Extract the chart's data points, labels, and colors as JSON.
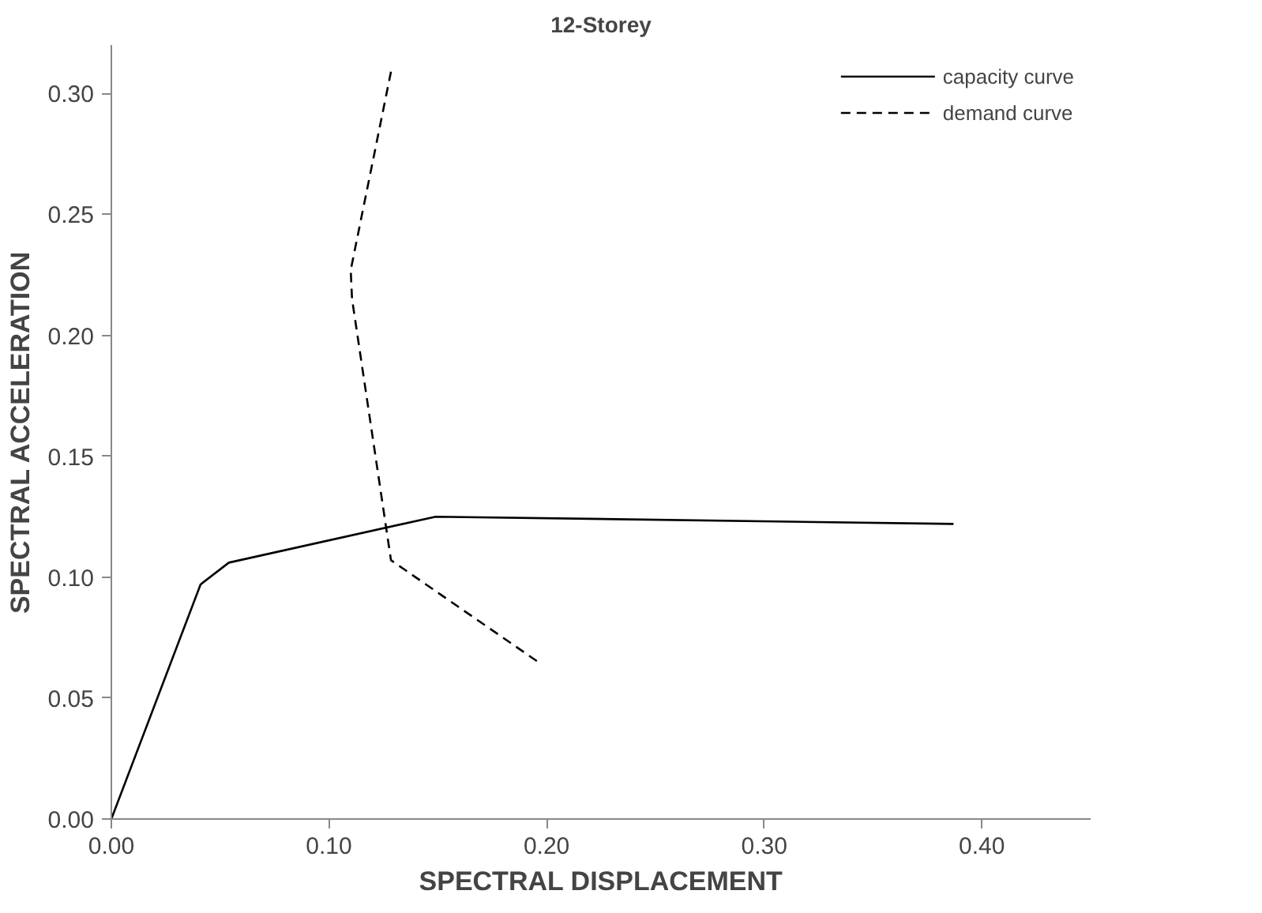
{
  "chart_data": {
    "type": "line",
    "title": "12-Storey",
    "xlabel": "SPECTRAL DISPLACEMENT",
    "ylabel": "SPECTRAL ACCELERATION",
    "xlim": [
      0,
      0.45
    ],
    "xticks": [
      {
        "value": 0,
        "label": "0.00"
      },
      {
        "value": 0.1,
        "label": "0.10"
      },
      {
        "value": 0.2,
        "label": "0.20"
      },
      {
        "value": 0.3,
        "label": "0.30"
      },
      {
        "value": 0.4,
        "label": "0.40"
      }
    ],
    "ylim": [
      0,
      0.32
    ],
    "yticks": [
      {
        "value": 0,
        "label": "0.00"
      },
      {
        "value": 0.05,
        "label": "0.05"
      },
      {
        "value": 0.1,
        "label": "0.10"
      },
      {
        "value": 0.15,
        "label": "0.15"
      },
      {
        "value": 0.2,
        "label": "0.20"
      },
      {
        "value": 0.25,
        "label": "0.25"
      },
      {
        "value": 0.3,
        "label": "0.30"
      }
    ],
    "grid": false,
    "legend": "top right",
    "marker": "none",
    "series": [
      {
        "name": "capacity curve",
        "color": "#000000",
        "line_style": "solid",
        "x": [
          0,
          0.041,
          0.054,
          0.149,
          0.387
        ],
        "values": [
          0,
          0.097,
          0.106,
          0.125,
          0.122
        ]
      },
      {
        "name": "demand curve",
        "color": "#000000",
        "line_style": "dashed",
        "x": [
          0.1285,
          0.11,
          0.1106,
          0.1285,
          0.196
        ],
        "values": [
          0.309,
          0.227,
          0.215,
          0.107,
          0.065
        ]
      }
    ]
  }
}
